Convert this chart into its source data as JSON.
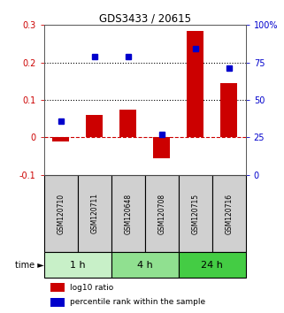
{
  "title": "GDS3433 / 20615",
  "samples": [
    "GSM120710",
    "GSM120711",
    "GSM120648",
    "GSM120708",
    "GSM120715",
    "GSM120716"
  ],
  "log10_ratio": [
    -0.01,
    0.06,
    0.075,
    -0.055,
    0.285,
    0.145
  ],
  "percentile_rank": [
    36,
    79,
    79,
    27,
    84,
    71
  ],
  "time_groups": [
    {
      "label": "1 h",
      "samples": [
        0,
        1
      ],
      "color": "#c8f0c8"
    },
    {
      "label": "4 h",
      "samples": [
        2,
        3
      ],
      "color": "#90e090"
    },
    {
      "label": "24 h",
      "samples": [
        4,
        5
      ],
      "color": "#44cc44"
    }
  ],
  "bar_color": "#cc0000",
  "dot_color": "#0000cc",
  "zero_line_color": "#cc0000",
  "grid_color": "#000000",
  "left_ylim": [
    -0.1,
    0.3
  ],
  "right_ylim": [
    0,
    100
  ],
  "left_yticks": [
    -0.1,
    0.0,
    0.1,
    0.2,
    0.3
  ],
  "right_yticks": [
    0,
    25,
    50,
    75,
    100
  ],
  "left_ytick_labels": [
    "-0.1",
    "0",
    "0.1",
    "0.2",
    "0.3"
  ],
  "right_ytick_labels": [
    "0",
    "25",
    "50",
    "75",
    "100%"
  ],
  "dotted_lines": [
    0.1,
    0.2
  ],
  "bg_color": "#ffffff",
  "sample_box_color": "#d0d0d0",
  "bar_width": 0.5
}
